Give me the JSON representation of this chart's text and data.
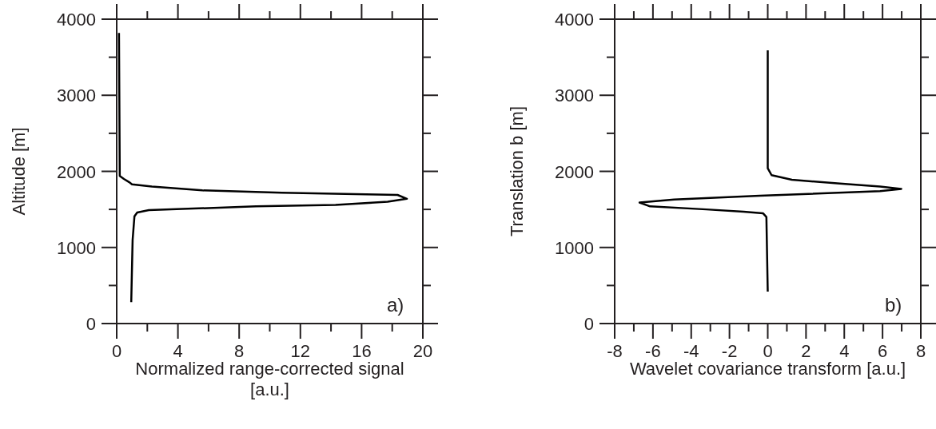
{
  "chart_data": [
    {
      "type": "line",
      "xlabel": "Normalized range-corrected signal [a.u.]",
      "ylabel": "Altitude [m]",
      "annotations": [
        "a)"
      ],
      "marker": "none",
      "xlim": [
        0,
        20
      ],
      "ylim": [
        0,
        4000
      ],
      "xticks": [
        0,
        {
          "value": 2,
          "label": null
        },
        4,
        {
          "value": 6,
          "label": null
        },
        8,
        {
          "value": 10,
          "label": null
        },
        12,
        {
          "value": 14,
          "label": null
        },
        16,
        {
          "value": 18,
          "label": null
        },
        20
      ],
      "yticks": [
        0,
        {
          "value": 500,
          "label": null
        },
        1000,
        {
          "value": 1500,
          "label": null
        },
        2000,
        {
          "value": 2500,
          "label": null
        },
        3000,
        {
          "value": 3500,
          "label": null
        },
        4000
      ],
      "series": [
        {
          "color": "#000000",
          "x": [
            0.15,
            0.2,
            0.47,
            0.8,
            1.0,
            2.3,
            5.6,
            10.8,
            18.35,
            18.96,
            17.7,
            14.3,
            9.1,
            2.1,
            1.34,
            1.16,
            1.04,
            0.95
          ],
          "values": [
            3820,
            1940,
            1900,
            1860,
            1830,
            1800,
            1750,
            1720,
            1690,
            1640,
            1600,
            1560,
            1540,
            1490,
            1460,
            1410,
            1100,
            280
          ]
        }
      ]
    },
    {
      "type": "line",
      "xlabel": "Wavelet covariance transform [a.u.]",
      "ylabel": "Translation b [m]",
      "annotations": [
        "b)"
      ],
      "marker": "none",
      "xlim": [
        -8,
        8
      ],
      "ylim": [
        0,
        4000
      ],
      "xticks": [
        -8,
        {
          "value": -7,
          "label": null
        },
        -6,
        {
          "value": -5,
          "label": null
        },
        -4,
        {
          "value": -3,
          "label": null
        },
        -2,
        {
          "value": -1,
          "label": null
        },
        0,
        {
          "value": 1,
          "label": null
        },
        2,
        {
          "value": 3,
          "label": null
        },
        4,
        {
          "value": 5,
          "label": null
        },
        6,
        {
          "value": 7,
          "label": null
        },
        8
      ],
      "yticks": [
        0,
        {
          "value": 500,
          "label": null
        },
        1000,
        {
          "value": 1500,
          "label": null
        },
        2000,
        {
          "value": 2500,
          "label": null
        },
        3000,
        {
          "value": 3500,
          "label": null
        },
        4000
      ],
      "series": [
        {
          "color": "#000000",
          "x": [
            0,
            0,
            0.2,
            1.26,
            3.77,
            5.87,
            6.98,
            5.87,
            -0.42,
            -4.89,
            -6.7,
            -6.15,
            -3.21,
            -1.26,
            -0.25,
            -0.07,
            0
          ],
          "values": [
            3590,
            2040,
            1950,
            1890,
            1840,
            1800,
            1770,
            1740,
            1680,
            1630,
            1590,
            1540,
            1500,
            1470,
            1450,
            1400,
            420
          ]
        }
      ]
    }
  ]
}
